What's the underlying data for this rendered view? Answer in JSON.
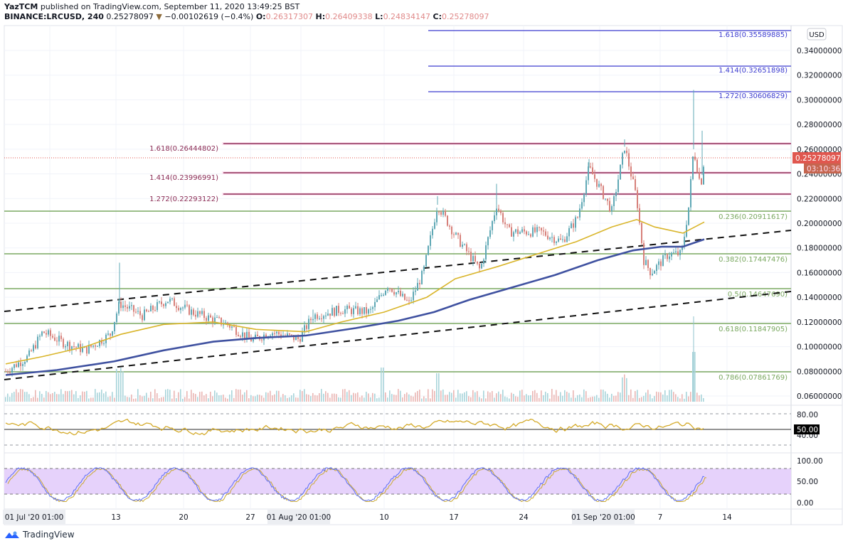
{
  "header": {
    "author": "YazTCM",
    "published_text": "published on TradingView.com, September 11, 2020 13:49:25 BST",
    "symbol": "BINANCE:LRCUSD, 240",
    "last_price": "0.25278097",
    "change": "−0.00102619 (−0.4%)",
    "change_icon": "triangle-down-icon",
    "ohlc": {
      "o_label": "O:",
      "o": "0.26317307",
      "h_label": "H:",
      "h": "0.26409338",
      "l_label": "L:",
      "l": "0.24834147",
      "c_label": "C:",
      "c": "0.25278097"
    }
  },
  "price_axis": {
    "currency_button": "USD",
    "ticks": [
      "0.34000000",
      "0.32000000",
      "0.30000000",
      "0.28000000",
      "0.26000000",
      "0.24000000",
      "0.22000000",
      "0.20000000",
      "0.18000000",
      "0.16000000",
      "0.14000000",
      "0.12000000",
      "0.10000000",
      "0.08000000",
      "0.06000000"
    ],
    "current_price_label": "0.25278097",
    "countdown_label": "03:10:36",
    "current_price_color": "#e0574f"
  },
  "rsi_axis": {
    "ticks": [
      "80.00",
      "40.00"
    ],
    "current_label": "50.00"
  },
  "stoch_axis": {
    "ticks": [
      "100.00",
      "50.00",
      "0.00"
    ]
  },
  "time_axis": {
    "labels": [
      {
        "text": "01 Jul '20  01:00",
        "highlight": true
      },
      {
        "text": "13"
      },
      {
        "text": "20"
      },
      {
        "text": "27"
      },
      {
        "text": "01 Aug '20  01:00",
        "highlight": true
      },
      {
        "text": "10"
      },
      {
        "text": "17"
      },
      {
        "text": "24"
      },
      {
        "text": "01 Sep '20  01:00",
        "highlight": true
      },
      {
        "text": "7"
      },
      {
        "text": "14"
      }
    ]
  },
  "fib_extension_upper": [
    {
      "label": "1.618(0.35589885)",
      "color": "#3c3ccf"
    },
    {
      "label": "1.414(0.32651898)",
      "color": "#3c3ccf"
    },
    {
      "label": "1.272(0.30606829)",
      "color": "#3c3ccf"
    }
  ],
  "fib_extension_lower": [
    {
      "label": "1.618(0.26444802)",
      "color": "#8b2c55"
    },
    {
      "label": "1.414(0.23996991)",
      "color": "#8b2c55"
    },
    {
      "label": "1.272(0.22293122)",
      "color": "#8b2c55"
    }
  ],
  "fib_retracement": [
    {
      "label": "0.236(0.20911617)",
      "color": "#7aa860"
    },
    {
      "label": "0.382(0.17447476)",
      "color": "#7aa860"
    },
    {
      "label": "0.5(0.14647690)",
      "color": "#7aa860"
    },
    {
      "label": "0.618(0.11847905)",
      "color": "#7aa860"
    },
    {
      "label": "0.786(0.07861769)",
      "color": "#7aa860"
    }
  ],
  "colors": {
    "ma_fast": "#d9b52a",
    "ma_slow": "#3f51a0",
    "rsi": "#d4aa2a",
    "stoch_k": "#5b6ef5",
    "stoch_d": "#c9a832",
    "stoch_band": "#e6d2fb",
    "candle_up": "#5fa8b5",
    "candle_down": "#d7807a"
  },
  "footer": {
    "brand": "TradingView"
  },
  "chart_data": {
    "type": "candlestick",
    "title": "BINANCE:LRCUSD, 240",
    "xlabel": "",
    "ylabel": "USD",
    "ylim": [
      0.055,
      0.36
    ],
    "x": [
      "01 Jul",
      "13 Jul",
      "20 Jul",
      "27 Jul",
      "01 Aug",
      "10 Aug",
      "17 Aug",
      "24 Aug",
      "01 Sep",
      "07 Sep",
      "11 Sep"
    ],
    "series": [
      {
        "name": "Close (approx)",
        "values": [
          0.08,
          0.13,
          0.125,
          0.11,
          0.108,
          0.15,
          0.18,
          0.195,
          0.22,
          0.17,
          0.2528
        ]
      },
      {
        "name": "MA fast (approx)",
        "values": [
          0.085,
          0.105,
          0.113,
          0.108,
          0.109,
          0.132,
          0.163,
          0.178,
          0.205,
          0.192,
          0.201
        ]
      },
      {
        "name": "MA slow (approx)",
        "values": [
          0.075,
          0.09,
          0.1,
          0.106,
          0.108,
          0.118,
          0.135,
          0.155,
          0.175,
          0.18,
          0.186
        ]
      }
    ],
    "horizontal_levels": {
      "fib_ext_upper": {
        "1.618": 0.35589885,
        "1.414": 0.32651898,
        "1.272": 0.30606829
      },
      "fib_ext_lower": {
        "1.618": 0.26444802,
        "1.414": 0.23996991,
        "1.272": 0.22293122
      },
      "fib_retracement": {
        "0.236": 0.20911617,
        "0.382": 0.17447476,
        "0.5": 0.1464769,
        "0.618": 0.11847905,
        "0.786": 0.07861769
      }
    },
    "trend_channel": "ascending dashed parallel channel",
    "last": {
      "open": 0.26317307,
      "high": 0.26409338,
      "low": 0.24834147,
      "close": 0.25278097,
      "change": -0.00102619,
      "change_pct": -0.4
    },
    "indicators": {
      "rsi": {
        "levels": [
          80,
          50,
          40
        ],
        "current": 50
      },
      "stoch_rsi": {
        "levels": [
          100,
          80,
          20,
          0
        ],
        "axis_ticks": [
          100,
          50,
          0
        ]
      }
    },
    "grid": true,
    "legend_position": "top-left"
  }
}
